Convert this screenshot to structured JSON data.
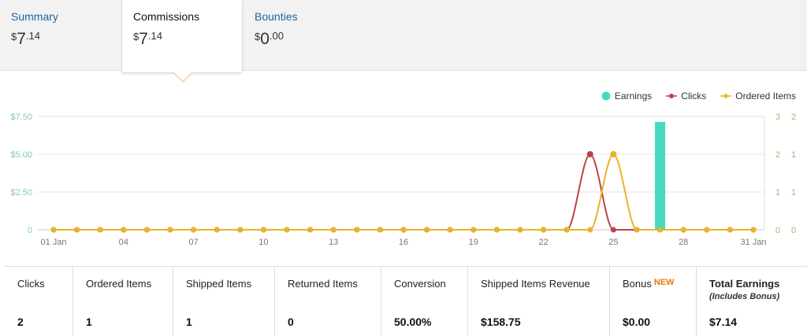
{
  "tabs": [
    {
      "label": "Summary",
      "currency": "$",
      "whole": "7",
      "fraction": ".14"
    },
    {
      "label": "Commissions",
      "currency": "$",
      "whole": "7",
      "fraction": ".14"
    },
    {
      "label": "Bounties",
      "currency": "$",
      "whole": "0",
      "fraction": ".00"
    }
  ],
  "active_tab": "Commissions",
  "legend": {
    "earnings": "Earnings",
    "clicks": "Clicks",
    "ordered_items": "Ordered Items"
  },
  "colors": {
    "earnings": "#48d8bf",
    "clicks": "#b94446",
    "ordered_items": "#e9b326",
    "left_axis": "#86c9ae",
    "right_axis": "#c5a870",
    "link": "#1d64a6",
    "new_badge": "#e47911"
  },
  "chart_data": {
    "type": "combo",
    "x": [
      "01 Jan",
      "02 Jan",
      "03 Jan",
      "04 Jan",
      "05 Jan",
      "06 Jan",
      "07 Jan",
      "08 Jan",
      "09 Jan",
      "10 Jan",
      "11 Jan",
      "12 Jan",
      "13 Jan",
      "14 Jan",
      "15 Jan",
      "16 Jan",
      "17 Jan",
      "18 Jan",
      "19 Jan",
      "20 Jan",
      "21 Jan",
      "22 Jan",
      "23 Jan",
      "24 Jan",
      "25 Jan",
      "26 Jan",
      "27 Jan",
      "28 Jan",
      "29 Jan",
      "30 Jan",
      "31 Jan"
    ],
    "x_tick_labels": [
      {
        "index": 0,
        "label": "01 Jan"
      },
      {
        "index": 3,
        "label": "04"
      },
      {
        "index": 6,
        "label": "07"
      },
      {
        "index": 9,
        "label": "10"
      },
      {
        "index": 12,
        "label": "13"
      },
      {
        "index": 15,
        "label": "16"
      },
      {
        "index": 18,
        "label": "19"
      },
      {
        "index": 21,
        "label": "22"
      },
      {
        "index": 24,
        "label": "25"
      },
      {
        "index": 27,
        "label": "28"
      },
      {
        "index": 30,
        "label": "31 Jan"
      }
    ],
    "series": [
      {
        "name": "Earnings",
        "type": "bar",
        "axis": "left",
        "values": [
          0,
          0,
          0,
          0,
          0,
          0,
          0,
          0,
          0,
          0,
          0,
          0,
          0,
          0,
          0,
          0,
          0,
          0,
          0,
          0,
          0,
          0,
          0,
          0,
          0,
          0,
          7.14,
          0,
          0,
          0,
          0
        ]
      },
      {
        "name": "Clicks",
        "type": "line",
        "axis": "right1",
        "values": [
          0,
          0,
          0,
          0,
          0,
          0,
          0,
          0,
          0,
          0,
          0,
          0,
          0,
          0,
          0,
          0,
          0,
          0,
          0,
          0,
          0,
          0,
          0,
          2,
          0,
          0,
          0,
          0,
          0,
          0,
          0
        ]
      },
      {
        "name": "Ordered Items",
        "type": "line",
        "axis": "right2",
        "values": [
          0,
          0,
          0,
          0,
          0,
          0,
          0,
          0,
          0,
          0,
          0,
          0,
          0,
          0,
          0,
          0,
          0,
          0,
          0,
          0,
          0,
          0,
          0,
          0,
          1,
          0,
          0,
          0,
          0,
          0,
          0
        ]
      }
    ],
    "left_axis": {
      "ticks": [
        0,
        2.5,
        5,
        7.5
      ],
      "labels": [
        "0",
        "$2.50",
        "$5.00",
        "$7.50"
      ],
      "ylim": [
        0,
        7.5
      ]
    },
    "right_axis_1": {
      "ticks": [
        0,
        1,
        2,
        3
      ],
      "labels": [
        "0",
        "1",
        "2",
        "3"
      ],
      "ylim": [
        0,
        3
      ]
    },
    "right_axis_2": {
      "ticks": [
        0,
        0.5,
        1,
        1.5
      ],
      "labels": [
        "0",
        "1",
        "1",
        "2"
      ],
      "ylim": [
        0,
        1.5
      ]
    },
    "grid": true,
    "legend_position": "top-right"
  },
  "stats": [
    {
      "label": "Clicks",
      "value": "2"
    },
    {
      "label": "Ordered Items",
      "value": "1"
    },
    {
      "label": "Shipped Items",
      "value": "1"
    },
    {
      "label": "Returned Items",
      "value": "0"
    },
    {
      "label": "Conversion",
      "value": "50.00%"
    },
    {
      "label": "Shipped Items Revenue",
      "value": "$158.75"
    },
    {
      "label": "Bonus",
      "badge": "NEW",
      "value": "$0.00"
    },
    {
      "label": "Total Earnings",
      "sublabel": "(Includes Bonus)",
      "value": "$7.14"
    }
  ]
}
